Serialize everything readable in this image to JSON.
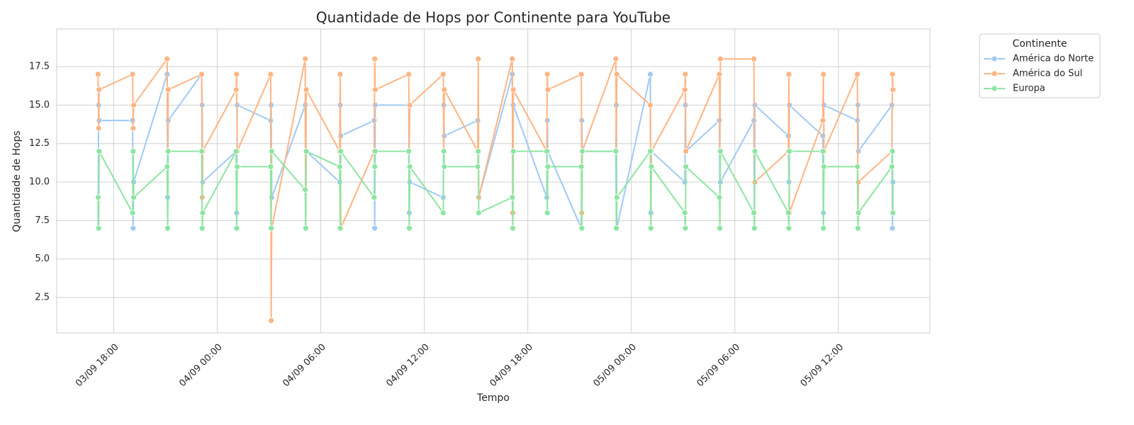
{
  "chart_data": {
    "type": "line",
    "title": "Quantidade de Hops por Continente para YouTube",
    "x_label": "Tempo",
    "y_label": "Quantidade de Hops",
    "legend_title": "Continente",
    "legend": "upper right outside",
    "grid": true,
    "xlim": [
      14.7,
      65.3
    ],
    "xticks": [
      {
        "value": 18,
        "label": "03/09 18:00"
      },
      {
        "value": 24,
        "label": "04/09 00:00"
      },
      {
        "value": 30,
        "label": "04/09 06:00"
      },
      {
        "value": 36,
        "label": "04/09 12:00"
      },
      {
        "value": 42,
        "label": "04/09 18:00"
      },
      {
        "value": 48,
        "label": "05/09 00:00"
      },
      {
        "value": 54,
        "label": "05/09 06:00"
      },
      {
        "value": 60,
        "label": "05/09 12:00"
      }
    ],
    "ylim": [
      0.2,
      19.94
    ],
    "yticks": [
      2.5,
      5.0,
      7.5,
      10.0,
      12.5,
      15.0,
      17.5
    ],
    "x": [
      17.1,
      17.13,
      17.16,
      19.1,
      19.13,
      19.16,
      21.1,
      21.13,
      21.16,
      23.1,
      23.13,
      23.16,
      25.1,
      25.13,
      25.16,
      27.1,
      27.13,
      27.16,
      29.1,
      29.13,
      29.16,
      31.1,
      31.13,
      31.16,
      33.1,
      33.13,
      33.16,
      35.1,
      35.13,
      35.16,
      37.1,
      37.13,
      37.16,
      39.1,
      39.13,
      39.16,
      41.1,
      41.13,
      41.16,
      43.1,
      43.13,
      43.16,
      45.1,
      45.13,
      45.16,
      47.1,
      47.13,
      47.16,
      49.1,
      49.13,
      49.16,
      51.1,
      51.13,
      51.16,
      53.1,
      53.13,
      53.16,
      55.1,
      55.13,
      55.16,
      57.1,
      57.13,
      57.16,
      59.1,
      59.13,
      59.16,
      61.1,
      61.13,
      61.16,
      63.1,
      63.13,
      63.16
    ],
    "series": [
      {
        "name": "América do Norte",
        "color": "#a1c9f4",
        "values": [
          7,
          15,
          14,
          14,
          7,
          10,
          17,
          9,
          14,
          17,
          15,
          10,
          12,
          8,
          15,
          14,
          15,
          9,
          15,
          7,
          12,
          10,
          15,
          13,
          14,
          7,
          15,
          15,
          8,
          10,
          9,
          15,
          13,
          14,
          12,
          9,
          17,
          7,
          15,
          9,
          14,
          12,
          7,
          14,
          12,
          12,
          15,
          7,
          17,
          8,
          12,
          10,
          15,
          12,
          14,
          9,
          10,
          14,
          7,
          15,
          13,
          10,
          15,
          13,
          8,
          15,
          14,
          15,
          12,
          15,
          7,
          10
        ]
      },
      {
        "name": "América do Sul",
        "color": "#ffb482",
        "values": [
          17,
          13.5,
          16,
          17,
          13.5,
          15,
          18,
          12,
          16,
          17,
          9,
          12,
          16,
          17,
          12,
          17,
          1,
          7,
          18,
          7,
          16,
          12,
          17,
          7,
          12,
          18,
          16,
          17,
          12,
          15,
          17,
          12,
          16,
          12,
          18,
          9,
          18,
          8,
          16,
          12,
          17,
          16,
          17,
          8,
          12,
          18,
          12,
          17,
          15,
          7,
          12,
          16,
          17,
          12,
          17,
          12,
          18,
          18,
          12,
          10,
          12,
          17,
          8,
          14,
          17,
          12,
          17,
          8,
          10,
          12,
          17,
          16
        ]
      },
      {
        "name": "Europa",
        "color": "#8de5a1",
        "values": [
          9,
          7,
          12,
          8,
          12,
          9,
          11,
          7,
          12,
          12,
          7,
          8,
          12,
          7,
          11,
          11,
          7,
          12,
          9.5,
          7,
          12,
          11,
          7,
          12,
          9,
          11,
          12,
          12,
          7,
          11,
          8,
          12,
          11,
          11,
          12,
          8,
          9,
          7,
          12,
          12,
          8,
          11,
          11,
          7,
          12,
          12,
          7,
          9,
          12,
          7,
          11,
          8,
          7,
          11,
          9,
          7,
          12,
          8,
          7,
          12,
          8,
          7,
          12,
          12,
          7,
          11,
          11,
          7,
          8,
          11,
          12,
          8
        ]
      }
    ]
  }
}
